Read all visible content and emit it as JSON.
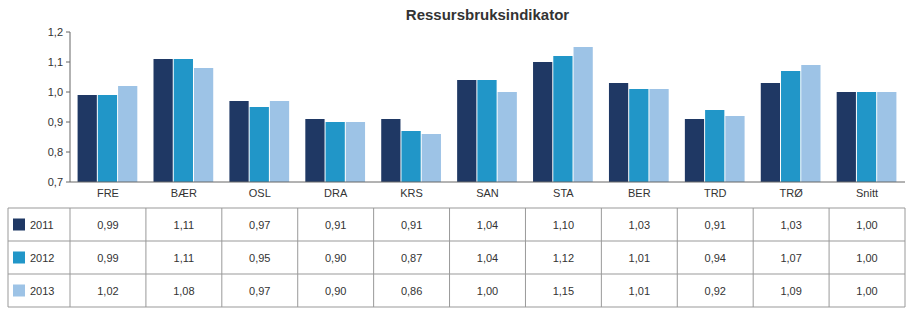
{
  "chart_data": {
    "type": "bar",
    "title": "Ressursbruksindikator",
    "categories": [
      "FRE",
      "BÆR",
      "OSL",
      "DRA",
      "KRS",
      "SAN",
      "STA",
      "BER",
      "TRD",
      "TRØ",
      "Snitt"
    ],
    "series": [
      {
        "name": "2011",
        "color": "#1F3864",
        "values": [
          0.99,
          1.11,
          0.97,
          0.91,
          0.91,
          1.04,
          1.1,
          1.03,
          0.91,
          1.03,
          1.0
        ],
        "value_labels": [
          "0,99",
          "1,11",
          "0,97",
          "0,91",
          "0,91",
          "1,04",
          "1,10",
          "1,03",
          "0,91",
          "1,03",
          "1,00"
        ]
      },
      {
        "name": "2012",
        "color": "#2196C8",
        "values": [
          0.99,
          1.11,
          0.95,
          0.9,
          0.87,
          1.04,
          1.12,
          1.01,
          0.94,
          1.07,
          1.0
        ],
        "value_labels": [
          "0,99",
          "1,11",
          "0,95",
          "0,90",
          "0,87",
          "1,04",
          "1,12",
          "1,01",
          "0,94",
          "1,07",
          "1,00"
        ]
      },
      {
        "name": "2013",
        "color": "#9DC3E6",
        "values": [
          1.02,
          1.08,
          0.97,
          0.9,
          0.86,
          1.0,
          1.15,
          1.01,
          0.92,
          1.09,
          1.0
        ],
        "value_labels": [
          "1,02",
          "1,08",
          "0,97",
          "0,90",
          "0,86",
          "1,00",
          "1,15",
          "1,01",
          "0,92",
          "1,09",
          "1,00"
        ]
      }
    ],
    "ylim": [
      0.7,
      1.2
    ],
    "yticks": [
      {
        "value": 0.7,
        "label": "0,7"
      },
      {
        "value": 0.8,
        "label": "0,8"
      },
      {
        "value": 0.9,
        "label": "0,9"
      },
      {
        "value": 1.0,
        "label": "1,0"
      },
      {
        "value": 1.1,
        "label": "1,1"
      },
      {
        "value": 1.2,
        "label": "1,2"
      }
    ],
    "grid": false
  }
}
